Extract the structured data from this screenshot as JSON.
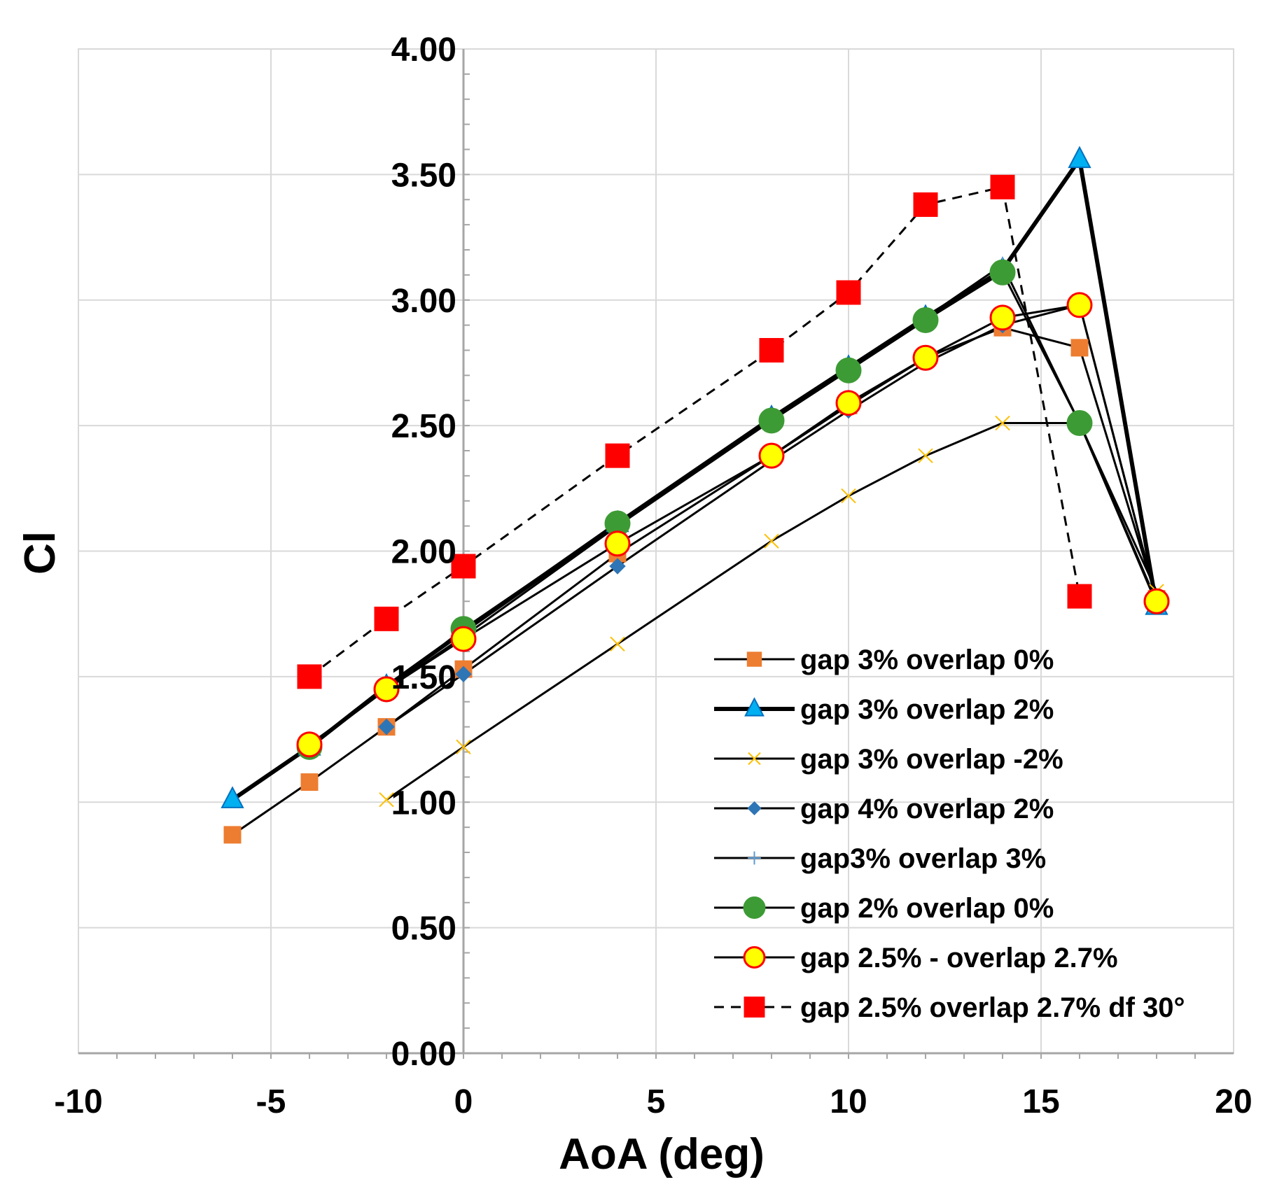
{
  "chart_data": {
    "type": "line",
    "xlabel": "AoA (deg)",
    "ylabel": "Cl",
    "xlim": [
      -10,
      20
    ],
    "ylim": [
      0,
      4
    ],
    "x_ticks": [
      -10,
      -5,
      0,
      5,
      10,
      15,
      20
    ],
    "y_ticks": [
      0,
      0.5,
      1,
      1.5,
      2,
      2.5,
      3,
      3.5,
      4
    ],
    "y_tick_labels": [
      "0.00",
      "0.50",
      "1.00",
      "1.50",
      "2.00",
      "2.50",
      "3.00",
      "3.50",
      "4.00"
    ],
    "x_tick_labels": [
      "-10",
      "-5",
      "0",
      "5",
      "10",
      "15",
      "20"
    ],
    "grid": true,
    "legend_position": "bottom-right",
    "series": [
      {
        "name": "gap 3% overlap 0%",
        "marker": "square",
        "marker_color": "#ED7D31",
        "marker_stroke": "#ED7D31",
        "line_color": "#000000",
        "line_style": "solid",
        "line_weight": "normal",
        "x": [
          -6,
          -4,
          -2,
          0,
          4,
          8,
          10,
          12,
          14,
          16,
          18
        ],
        "y": [
          0.87,
          1.08,
          1.3,
          1.53,
          1.99,
          2.38,
          2.58,
          2.77,
          2.89,
          2.81,
          1.81
        ]
      },
      {
        "name": "gap 3% overlap 2%",
        "marker": "triangle",
        "marker_color": "#00B0F0",
        "marker_stroke": "#0070C0",
        "line_color": "#000000",
        "line_style": "solid",
        "line_weight": "bold",
        "x": [
          -6,
          -4,
          -2,
          0,
          4,
          8,
          10,
          12,
          14,
          16,
          18
        ],
        "y": [
          1.01,
          1.22,
          1.46,
          1.68,
          2.11,
          2.53,
          2.73,
          2.93,
          3.12,
          3.56,
          1.78
        ]
      },
      {
        "name": "gap 3% overlap -2%",
        "marker": "x",
        "marker_color": "#FFC000",
        "marker_stroke": "#FFC000",
        "line_color": "#000000",
        "line_style": "solid",
        "line_weight": "normal",
        "x": [
          -2,
          0,
          4,
          8,
          10,
          12,
          14,
          16,
          18
        ],
        "y": [
          1.01,
          1.22,
          1.63,
          2.04,
          2.22,
          2.38,
          2.51,
          2.51,
          1.84
        ]
      },
      {
        "name": "gap 4% overlap 2%",
        "marker": "diamond",
        "marker_color": "#2E75B6",
        "marker_stroke": "#2E75B6",
        "line_color": "#000000",
        "line_style": "solid",
        "line_weight": "normal",
        "x": [
          -2,
          0,
          4,
          8,
          10,
          12,
          14,
          16,
          18
        ],
        "y": [
          1.3,
          1.51,
          1.94,
          2.36,
          2.56,
          2.75,
          2.9,
          2.98,
          1.8
        ]
      },
      {
        "name": "gap3% overlap 3%",
        "marker": "plus",
        "marker_color": "#5B9BD5",
        "marker_stroke": "#5B9BD5",
        "line_color": "#000000",
        "line_style": "solid",
        "line_weight": "normal",
        "x": [
          -4,
          -2,
          0,
          4,
          8,
          10,
          12,
          14,
          16,
          18
        ],
        "y": [
          1.23,
          1.45,
          1.66,
          2.1,
          2.52,
          2.72,
          2.93,
          3.14,
          2.51,
          1.79
        ]
      },
      {
        "name": "gap 2% overlap 0%",
        "marker": "circle",
        "marker_color": "#3D9B35",
        "marker_stroke": "#3D9B35",
        "line_color": "#000000",
        "line_style": "solid",
        "line_weight": "normal",
        "x": [
          -4,
          -2,
          0,
          4,
          8,
          10,
          12,
          14,
          16,
          18
        ],
        "y": [
          1.22,
          1.45,
          1.69,
          2.11,
          2.52,
          2.72,
          2.92,
          3.11,
          2.51,
          1.8
        ]
      },
      {
        "name": "gap 2.5% - overlap 2.7%",
        "marker": "circle",
        "marker_color": "#FFFF00",
        "marker_stroke": "#FF0000",
        "line_color": "#000000",
        "line_style": "solid",
        "line_weight": "normal",
        "x": [
          -4,
          -2,
          0,
          4,
          8,
          10,
          12,
          14,
          16,
          18
        ],
        "y": [
          1.23,
          1.45,
          1.65,
          2.03,
          2.38,
          2.59,
          2.77,
          2.93,
          2.98,
          1.8
        ]
      },
      {
        "name": "gap 2.5% overlap 2.7% df 30°",
        "marker": "square",
        "marker_color": "#FF0000",
        "marker_stroke": "#FF0000",
        "line_color": "#000000",
        "line_style": "dashed",
        "line_weight": "normal",
        "x": [
          -4,
          -2,
          0,
          4,
          8,
          10,
          12,
          14,
          16
        ],
        "y": [
          1.5,
          1.73,
          1.94,
          2.38,
          2.8,
          3.03,
          3.38,
          3.45,
          1.82
        ]
      }
    ]
  }
}
